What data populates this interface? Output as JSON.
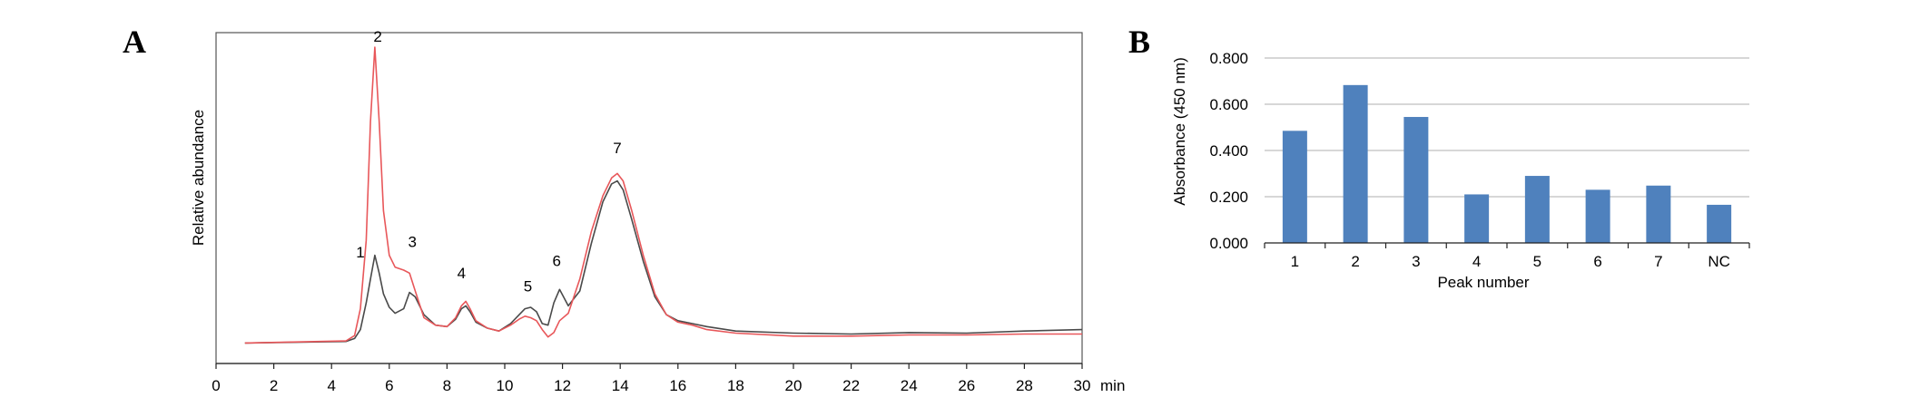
{
  "panels": {
    "a": "A",
    "b": "B"
  },
  "chart_data": [
    {
      "type": "line",
      "panel": "A",
      "xlabel": "min",
      "ylabel": "Relative abundance",
      "xlim": [
        0,
        30
      ],
      "ylim": [
        0,
        100
      ],
      "xticks": [
        "0",
        "2",
        "4",
        "6",
        "8",
        "10",
        "12",
        "14",
        "16",
        "18",
        "20",
        "22",
        "24",
        "26",
        "28",
        "30"
      ],
      "yticks_shown": false,
      "colors": {
        "red": "#e8575a",
        "black": "#4a4a4a"
      },
      "series": [
        {
          "color": "red",
          "x": [
            1.0,
            4.5,
            4.8,
            5.0,
            5.2,
            5.35,
            5.5,
            5.65,
            5.8,
            6.0,
            6.2,
            6.5,
            6.7,
            6.9,
            7.2,
            7.6,
            8.0,
            8.3,
            8.5,
            8.65,
            8.8,
            9.0,
            9.4,
            9.8,
            10.2,
            10.5,
            10.7,
            10.9,
            11.1,
            11.3,
            11.5,
            11.7,
            11.9,
            12.2,
            12.6,
            13.0,
            13.4,
            13.7,
            13.9,
            14.1,
            14.4,
            14.8,
            15.2,
            15.6,
            16.0,
            16.5,
            17.0,
            18.0,
            20.0,
            22.0,
            24.0,
            26.0,
            28.0,
            30.0
          ],
          "y": [
            0.5,
            1.2,
            3.0,
            12.0,
            35.0,
            75.0,
            100.0,
            75.0,
            45.0,
            30.0,
            26.0,
            25.0,
            24.0,
            18.0,
            9.0,
            6.5,
            6.0,
            9.0,
            13.0,
            14.5,
            12.0,
            8.0,
            5.5,
            4.5,
            6.5,
            8.5,
            9.5,
            9.0,
            8.0,
            5.0,
            2.5,
            4.0,
            8.0,
            10.5,
            22.0,
            38.0,
            50.0,
            56.0,
            57.5,
            55.0,
            45.0,
            30.0,
            17.0,
            10.0,
            7.5,
            6.5,
            5.0,
            3.8,
            2.8,
            2.8,
            3.2,
            3.2,
            3.5,
            3.5
          ]
        },
        {
          "color": "black",
          "x": [
            1.0,
            4.5,
            4.8,
            5.0,
            5.2,
            5.35,
            5.5,
            5.65,
            5.8,
            6.0,
            6.2,
            6.5,
            6.7,
            6.9,
            7.2,
            7.6,
            8.0,
            8.3,
            8.5,
            8.65,
            8.8,
            9.0,
            9.4,
            9.8,
            10.2,
            10.5,
            10.7,
            10.9,
            11.1,
            11.3,
            11.5,
            11.7,
            11.9,
            12.2,
            12.6,
            13.0,
            13.4,
            13.7,
            13.9,
            14.1,
            14.4,
            14.8,
            15.2,
            15.6,
            16.0,
            16.5,
            17.0,
            18.0,
            20.0,
            22.0,
            24.0,
            26.0,
            28.0,
            30.0
          ],
          "y": [
            0.5,
            1.0,
            2.0,
            5.0,
            14.0,
            22.0,
            30.0,
            24.0,
            17.0,
            12.5,
            10.5,
            12.0,
            17.5,
            16.0,
            10.0,
            6.5,
            6.0,
            8.5,
            12.0,
            13.0,
            11.0,
            7.5,
            5.5,
            4.5,
            7.0,
            10.0,
            12.0,
            12.5,
            11.0,
            7.0,
            6.5,
            14.0,
            18.5,
            13.0,
            18.0,
            34.0,
            48.0,
            54.0,
            55.0,
            52.0,
            42.0,
            28.0,
            16.0,
            10.0,
            8.0,
            7.0,
            6.0,
            4.5,
            3.8,
            3.5,
            4.0,
            3.8,
            4.5,
            5.0
          ]
        }
      ],
      "annotations": [
        {
          "text": "1",
          "x": 5.0,
          "y": 27.5
        },
        {
          "text": "2",
          "x": 5.6,
          "y": 100.0
        },
        {
          "text": "3",
          "x": 6.8,
          "y": 31.0
        },
        {
          "text": "4",
          "x": 8.5,
          "y": 20.5
        },
        {
          "text": "5",
          "x": 10.8,
          "y": 16.0
        },
        {
          "text": "6",
          "x": 11.8,
          "y": 24.5
        },
        {
          "text": "7",
          "x": 13.9,
          "y": 62.5
        }
      ]
    },
    {
      "type": "bar",
      "panel": "B",
      "xlabel": "Peak number",
      "ylabel": "Absorbance (450 nm)",
      "ylim": [
        0,
        0.8
      ],
      "yticks": [
        "0.000",
        "0.200",
        "0.400",
        "0.600",
        "0.800"
      ],
      "grid": true,
      "bar_color": "#4f81bd",
      "categories": [
        "1",
        "2",
        "3",
        "4",
        "5",
        "6",
        "7",
        "NC"
      ],
      "values": [
        0.485,
        0.683,
        0.545,
        0.21,
        0.29,
        0.23,
        0.248,
        0.165
      ]
    }
  ]
}
